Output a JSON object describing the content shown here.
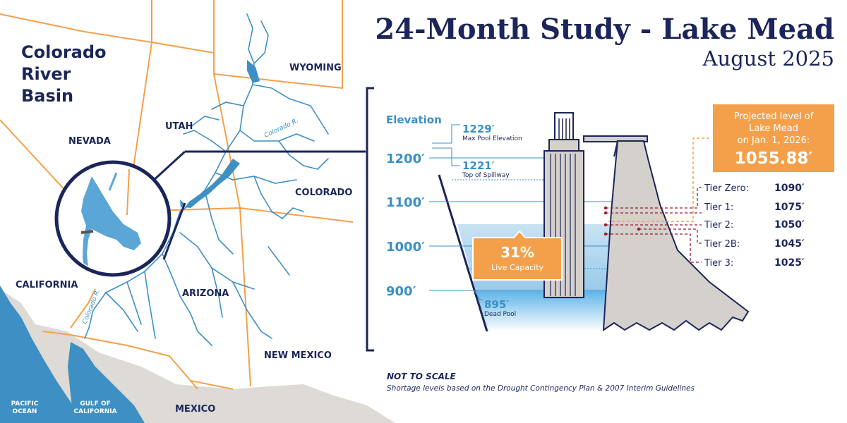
{
  "title": {
    "main": "24-Month Study - Lake Mead",
    "sub": "August 2025"
  },
  "map": {
    "heading": [
      "Colorado",
      "River",
      "Basin"
    ],
    "states": {
      "nevada": "NEVADA",
      "utah": "UTAH",
      "wyoming": "WYOMING",
      "colorado": "COLORADO",
      "california": "CALIFORNIA",
      "arizona": "ARIZONA",
      "new_mexico": "NEW MEXICO",
      "mexico": "MEXICO"
    },
    "river_labels": [
      "Colorado R.",
      "Colorado R."
    ],
    "water_bodies": {
      "pacific": [
        "PACIFIC",
        "OCEAN"
      ],
      "gulf": [
        "GULF OF",
        "CALIFORNIA"
      ]
    }
  },
  "diagram": {
    "axis_title": "Elevation",
    "elevation_ticks": [
      "1200′",
      "1100′",
      "1000′",
      "900′"
    ],
    "markers": {
      "max_pool": {
        "value": "1229′",
        "label": "Max Pool Elevation"
      },
      "spillway": {
        "value": "1221′",
        "label": "Top of Spillway"
      },
      "dead_pool": {
        "value": "895′",
        "label": "Dead Pool"
      }
    },
    "capacity": {
      "value": "31%",
      "label": "Live Capacity",
      "fraction": 0.31
    },
    "projection": {
      "lines": [
        "Projected level of",
        "Lake Mead",
        "on Jan. 1, 2026:"
      ],
      "value": "1055.88′"
    },
    "tiers": [
      {
        "name": "Tier Zero:",
        "value": "1090′"
      },
      {
        "name": "Tier 1:",
        "value": "1075′"
      },
      {
        "name": "Tier 2:",
        "value": "1050′"
      },
      {
        "name": "Tier 2B:",
        "value": "1045′"
      },
      {
        "name": "Tier 3:",
        "value": "1025′"
      }
    ]
  },
  "footnote": {
    "heading": "NOT TO SCALE",
    "text": "Shortage levels based on the Drought Contingency Plan & 2007 Interim Guidelines"
  },
  "colors": {
    "navy": "#1b2559",
    "orange": "#f4a04a",
    "river_blue": "#3d8fc4",
    "lake_blue": "#5aa6d6",
    "axis_blue": "#3b8fc6",
    "tier_red": "#9b1b30",
    "land_gray": "#dedad6",
    "dam_gray": "#d4d0cc"
  }
}
